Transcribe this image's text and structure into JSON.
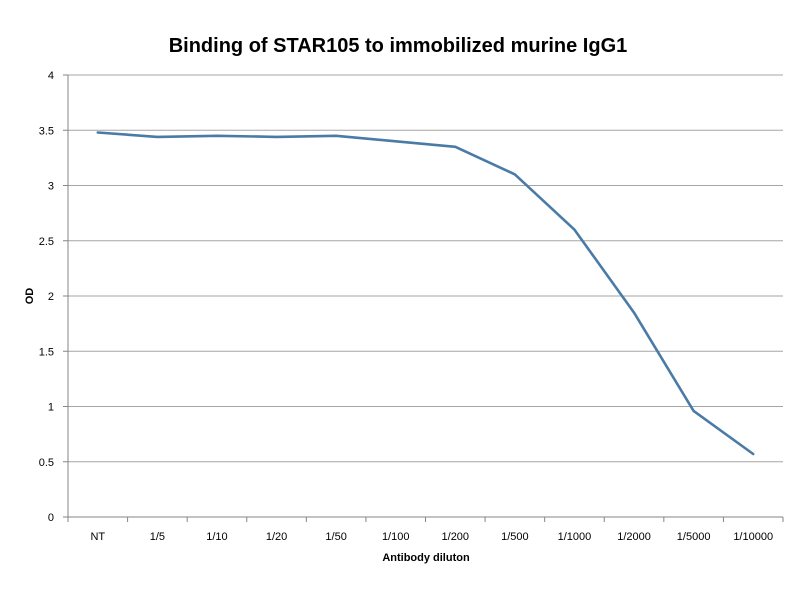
{
  "chart_data": {
    "type": "line",
    "title": "Binding of STAR105 to immobilized murine IgG1",
    "xlabel": "Antibody diluton",
    "ylabel": "OD",
    "categories": [
      "NT",
      "1/5",
      "1/10",
      "1/20",
      "1/50",
      "1/100",
      "1/200",
      "1/500",
      "1/1000",
      "1/2000",
      "1/5000",
      "1/10000"
    ],
    "series": [
      {
        "values": [
          3.48,
          3.44,
          3.45,
          3.44,
          3.45,
          3.4,
          3.35,
          3.1,
          2.6,
          1.85,
          0.96,
          0.57
        ]
      }
    ],
    "ylim": [
      0,
      4
    ],
    "yticks": [
      "0",
      "0.5",
      "1",
      "1.5",
      "2",
      "2.5",
      "3",
      "3.5",
      "4"
    ],
    "grid": true,
    "legend": "none",
    "colors": {
      "line": "#4a7ba6",
      "grid": "#a6a6a6",
      "axis": "#868686"
    }
  }
}
